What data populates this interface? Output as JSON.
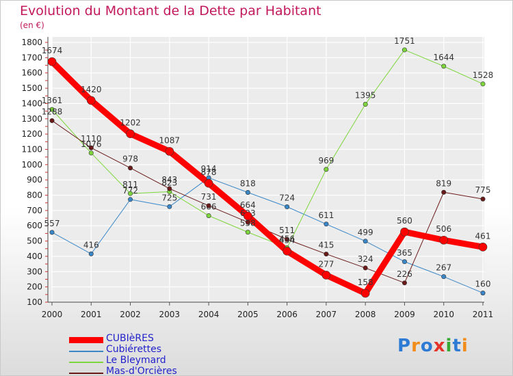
{
  "title": "Evolution du Montant de la Dette par Habitant",
  "subtitle": "(en €)",
  "logo": {
    "text": "Proxiti",
    "colors": [
      "#2e7bd6",
      "#f28c1b",
      "#2e7bd6",
      "#e5332a",
      "#39a935",
      "#2e7bd6",
      "#f28c1b"
    ]
  },
  "chart_data": {
    "type": "line",
    "title": "Evolution du Montant de la Dette par Habitant",
    "ylabel": "(en €)",
    "xlabel": "",
    "x": [
      "2000",
      "2001",
      "2002",
      "2003",
      "2004",
      "2005",
      "2006",
      "2007",
      "2008",
      "2009",
      "2010",
      "2011"
    ],
    "ylim": [
      100,
      1800
    ],
    "yticks": [
      100,
      200,
      300,
      400,
      500,
      600,
      700,
      800,
      900,
      1000,
      1100,
      1200,
      1300,
      1400,
      1500,
      1600,
      1700,
      1800
    ],
    "grid": true,
    "legend_position": "bottom-left",
    "series": [
      {
        "name": "CUBIèRES",
        "color": "#ff0000",
        "width": 9,
        "values": [
          1674,
          1420,
          1202,
          1087,
          878,
          664,
          434,
          277,
          158,
          560,
          506,
          461
        ]
      },
      {
        "name": "Cubiérettes",
        "color": "#3a87c8",
        "width": 1,
        "values": [
          557,
          416,
          772,
          725,
          914,
          818,
          724,
          611,
          499,
          365,
          267,
          160
        ]
      },
      {
        "name": "Le Bleymard",
        "color": "#7dd63c",
        "width": 1,
        "values": [
          1361,
          1076,
          811,
          823,
          666,
          558,
          456,
          969,
          1395,
          1751,
          1644,
          1528
        ]
      },
      {
        "name": "Mas-d'Orcières",
        "color": "#6b1a1a",
        "width": 1,
        "values": [
          1288,
          1110,
          978,
          843,
          731,
          623,
          511,
          415,
          324,
          226,
          819,
          775
        ]
      }
    ]
  }
}
